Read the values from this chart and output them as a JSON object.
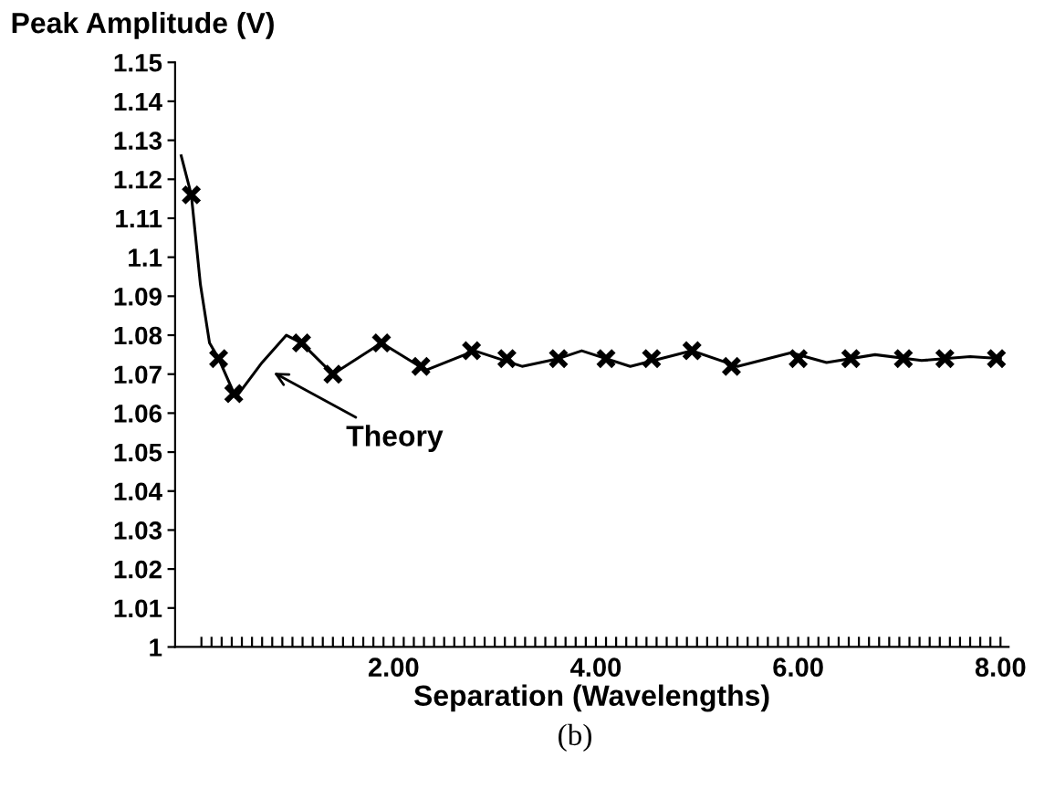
{
  "chart_data": {
    "type": "line",
    "ylabel": "Peak Amplitude (V)",
    "xlabel": "Separation (Wavelengths)",
    "series": [
      {
        "color": "#000000",
        "marker": "none",
        "line_style": "solid",
        "x": [
          -0.1,
          0.0,
          0.09,
          0.18,
          0.27,
          0.44,
          0.7,
          0.94,
          1.09,
          1.4,
          1.88,
          2.32,
          2.8,
          3.27,
          3.63,
          3.86,
          4.34,
          4.95,
          5.4,
          5.93,
          6.28,
          6.76,
          7.22,
          7.7,
          8.0
        ],
        "values": [
          1.126,
          1.116,
          1.093,
          1.078,
          1.074,
          1.064,
          1.073,
          1.08,
          1.078,
          1.07,
          1.078,
          1.071,
          1.076,
          1.072,
          1.074,
          1.076,
          1.072,
          1.076,
          1.072,
          1.0755,
          1.073,
          1.075,
          1.0735,
          1.0745,
          1.074
        ]
      },
      {
        "type": "scatter",
        "color": "#000000",
        "marker": "cross",
        "x": [
          0.0,
          0.27,
          0.42,
          1.09,
          1.4,
          1.88,
          2.27,
          2.77,
          3.12,
          3.63,
          4.1,
          4.55,
          4.95,
          5.34,
          6.0,
          6.52,
          7.04,
          7.45,
          7.96
        ],
        "values": [
          1.116,
          1.074,
          1.065,
          1.078,
          1.07,
          1.078,
          1.072,
          1.076,
          1.074,
          1.074,
          1.074,
          1.074,
          1.076,
          1.072,
          1.074,
          1.074,
          1.074,
          1.074,
          1.074
        ]
      }
    ],
    "xlim": [
      -0.16,
      8.08
    ],
    "ylim": [
      1,
      1.15
    ],
    "yticks": [
      1,
      1.01,
      1.02,
      1.03,
      1.04,
      1.05,
      1.06,
      1.07,
      1.08,
      1.09,
      1.1,
      1.11,
      1.12,
      1.13,
      1.14,
      1.15
    ],
    "xticks": [
      {
        "value": 0.1,
        "label": null
      },
      {
        "value": 0.2,
        "label": null
      },
      {
        "value": 0.3,
        "label": null
      },
      {
        "value": 0.4,
        "label": null
      },
      {
        "value": 0.5,
        "label": null
      },
      {
        "value": 0.6,
        "label": null
      },
      {
        "value": 0.7,
        "label": null
      },
      {
        "value": 0.8,
        "label": null
      },
      {
        "value": 0.9,
        "label": null
      },
      {
        "value": 1.0,
        "label": null
      },
      {
        "value": 1.1,
        "label": null
      },
      {
        "value": 1.2,
        "label": null
      },
      {
        "value": 1.3,
        "label": null
      },
      {
        "value": 1.4,
        "label": null
      },
      {
        "value": 1.5,
        "label": null
      },
      {
        "value": 1.6,
        "label": null
      },
      {
        "value": 1.7,
        "label": null
      },
      {
        "value": 1.8,
        "label": null
      },
      {
        "value": 1.9,
        "label": null
      },
      {
        "value": 2,
        "label": "2.00"
      },
      {
        "value": 2.1,
        "label": null
      },
      {
        "value": 2.2,
        "label": null
      },
      {
        "value": 2.3,
        "label": null
      },
      {
        "value": 2.4,
        "label": null
      },
      {
        "value": 2.5,
        "label": null
      },
      {
        "value": 2.6,
        "label": null
      },
      {
        "value": 2.7,
        "label": null
      },
      {
        "value": 2.8,
        "label": null
      },
      {
        "value": 2.9,
        "label": null
      },
      {
        "value": 3.0,
        "label": null
      },
      {
        "value": 3.1,
        "label": null
      },
      {
        "value": 3.2,
        "label": null
      },
      {
        "value": 3.3,
        "label": null
      },
      {
        "value": 3.4,
        "label": null
      },
      {
        "value": 3.5,
        "label": null
      },
      {
        "value": 3.6,
        "label": null
      },
      {
        "value": 3.7,
        "label": null
      },
      {
        "value": 3.8,
        "label": null
      },
      {
        "value": 3.9,
        "label": null
      },
      {
        "value": 4,
        "label": "4.00"
      },
      {
        "value": 4.1,
        "label": null
      },
      {
        "value": 4.2,
        "label": null
      },
      {
        "value": 4.3,
        "label": null
      },
      {
        "value": 4.4,
        "label": null
      },
      {
        "value": 4.5,
        "label": null
      },
      {
        "value": 4.6,
        "label": null
      },
      {
        "value": 4.7,
        "label": null
      },
      {
        "value": 4.8,
        "label": null
      },
      {
        "value": 4.9,
        "label": null
      },
      {
        "value": 5.0,
        "label": null
      },
      {
        "value": 5.1,
        "label": null
      },
      {
        "value": 5.2,
        "label": null
      },
      {
        "value": 5.3,
        "label": null
      },
      {
        "value": 5.4,
        "label": null
      },
      {
        "value": 5.5,
        "label": null
      },
      {
        "value": 5.6,
        "label": null
      },
      {
        "value": 5.7,
        "label": null
      },
      {
        "value": 5.8,
        "label": null
      },
      {
        "value": 5.9,
        "label": null
      },
      {
        "value": 6,
        "label": "6.00"
      },
      {
        "value": 6.1,
        "label": null
      },
      {
        "value": 6.2,
        "label": null
      },
      {
        "value": 6.3,
        "label": null
      },
      {
        "value": 6.4,
        "label": null
      },
      {
        "value": 6.5,
        "label": null
      },
      {
        "value": 6.6,
        "label": null
      },
      {
        "value": 6.7,
        "label": null
      },
      {
        "value": 6.8,
        "label": null
      },
      {
        "value": 6.9,
        "label": null
      },
      {
        "value": 7.0,
        "label": null
      },
      {
        "value": 7.1,
        "label": null
      },
      {
        "value": 7.2,
        "label": null
      },
      {
        "value": 7.3,
        "label": null
      },
      {
        "value": 7.4,
        "label": null
      },
      {
        "value": 7.5,
        "label": null
      },
      {
        "value": 7.6,
        "label": null
      },
      {
        "value": 7.7,
        "label": null
      },
      {
        "value": 7.8,
        "label": null
      },
      {
        "value": 7.9,
        "label": null
      },
      {
        "value": 8,
        "label": "8.00"
      }
    ],
    "annotations": [
      {
        "text": "Theory",
        "x": 0.77,
        "y": 1.071
      },
      "(b)"
    ],
    "grid": false,
    "legend": false
  }
}
